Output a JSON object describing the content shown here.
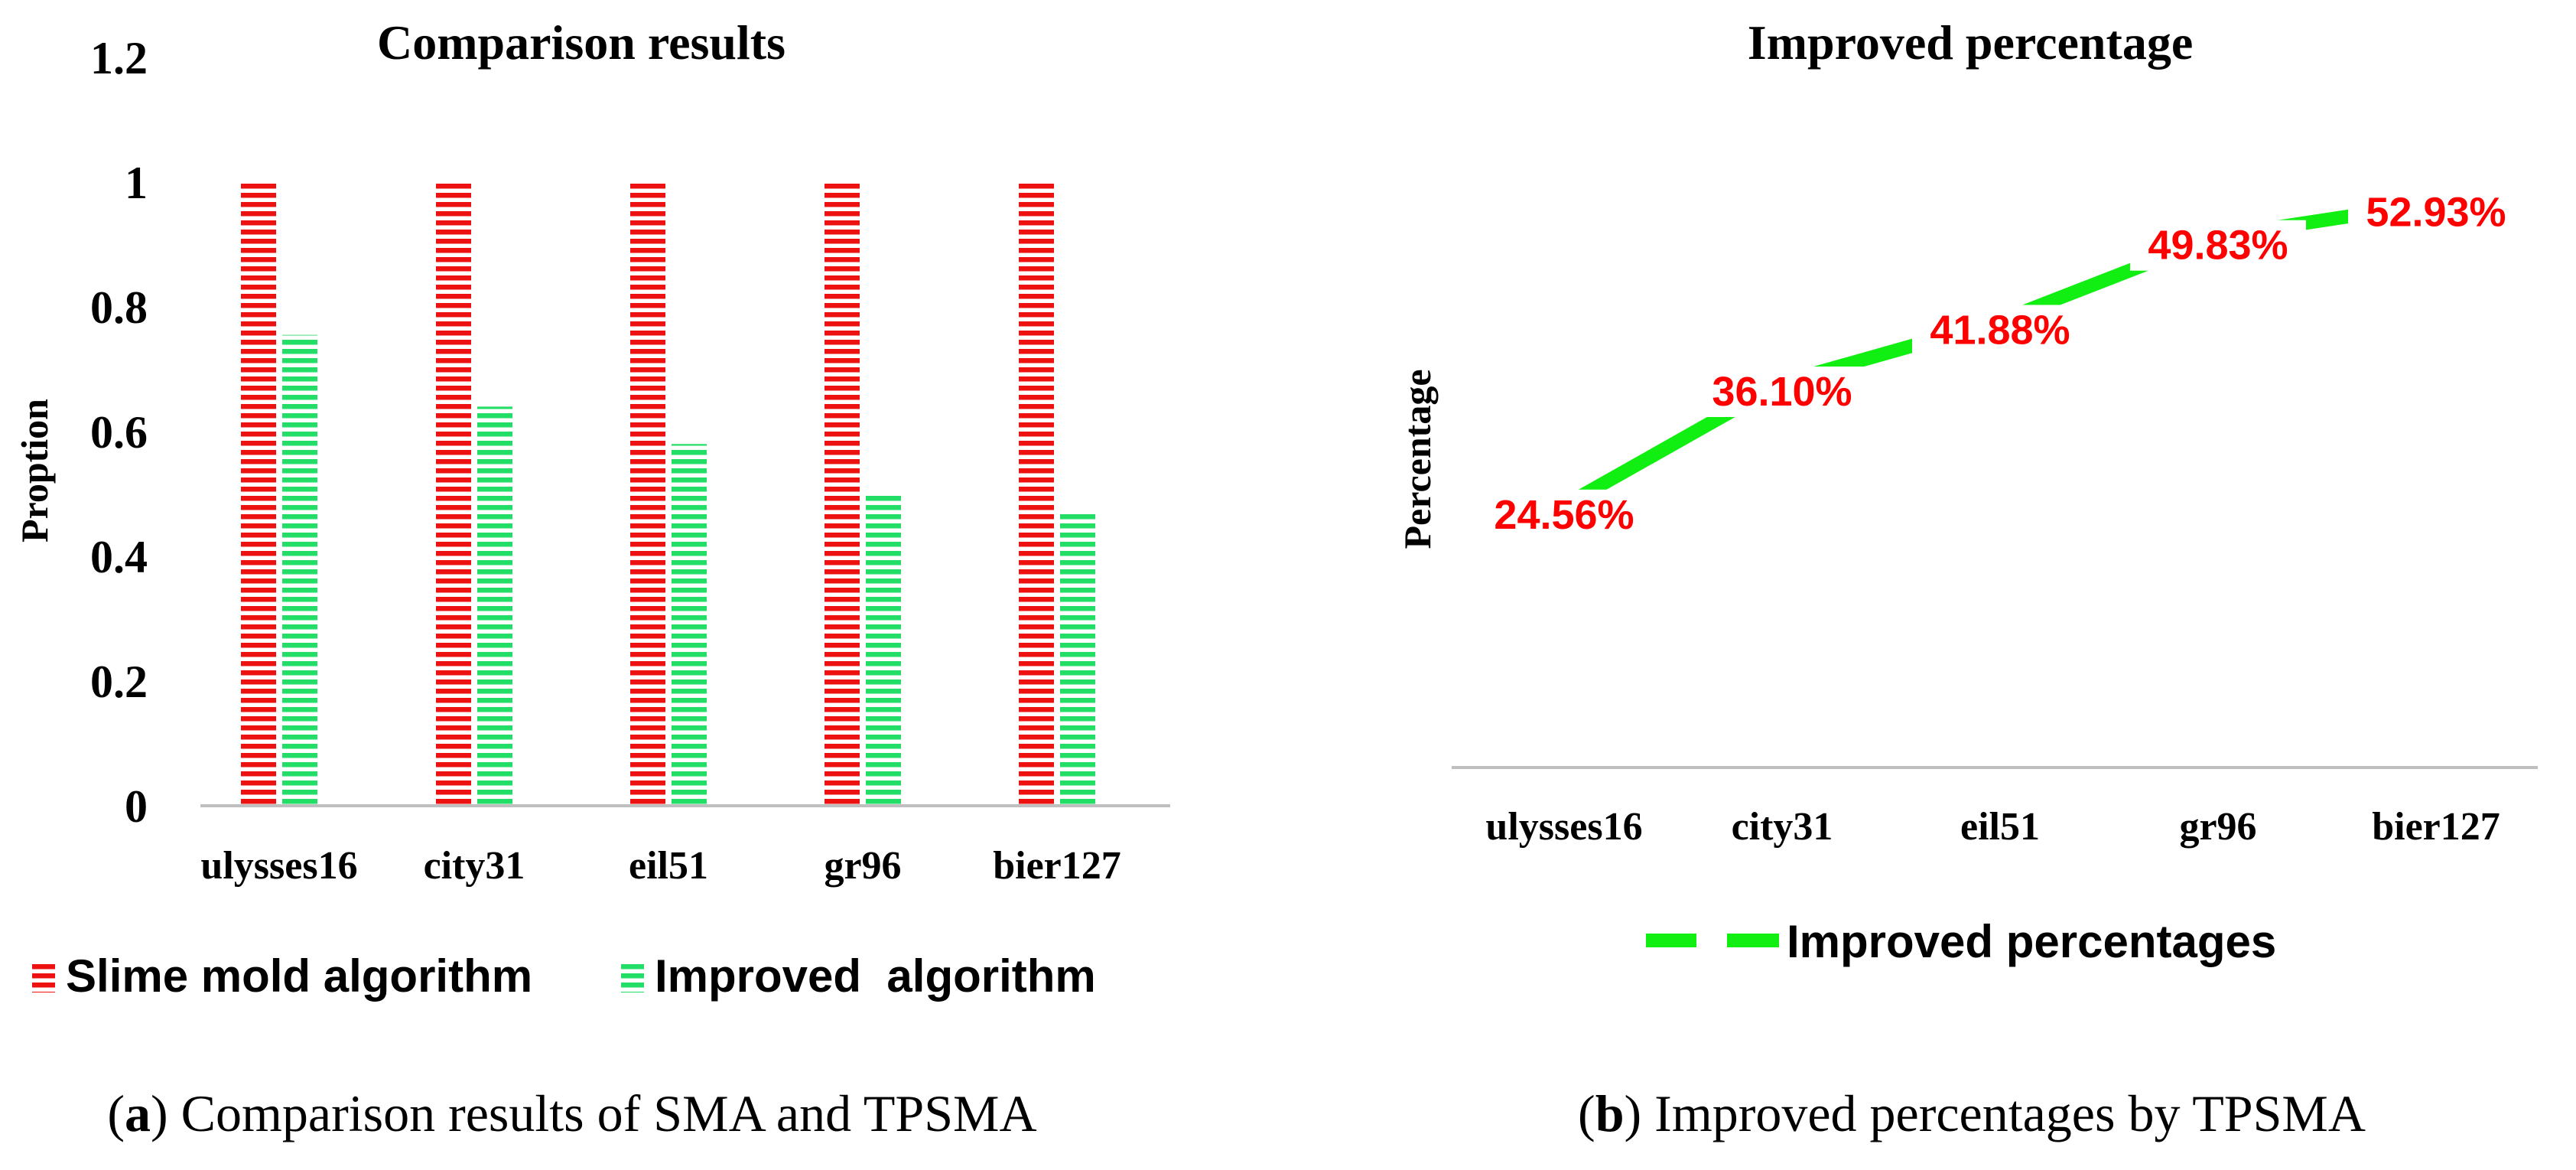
{
  "colors": {
    "red": "#ee1111",
    "green": "#22dd66",
    "line_green": "#11ee11",
    "label_red": "#ff0000",
    "axis": "#bfbfbf"
  },
  "chart_data": [
    {
      "type": "bar",
      "title": "Comparison results",
      "ylabel": "Proption",
      "xlabel": "",
      "ylim": [
        0,
        1.2
      ],
      "yticks": [
        "0",
        "0.2",
        "0.4",
        "0.6",
        "0.8",
        "1",
        "1.2"
      ],
      "categories": [
        "ulysses16",
        "city31",
        "eil51",
        "gr96",
        "bier127"
      ],
      "series": [
        {
          "name": "Slime mold algorithm",
          "values": [
            1,
            1,
            1,
            1,
            1
          ]
        },
        {
          "name": "Improved  algorithm",
          "values": [
            0.755,
            0.64,
            0.58,
            0.5,
            0.47
          ]
        }
      ],
      "legend_position": "bottom",
      "caption_label": "a",
      "caption_text": "Comparison results of SMA and TPSMA"
    },
    {
      "type": "line",
      "title": "Improved percentage",
      "ylabel": "Percentage",
      "xlabel": "",
      "ylim": [
        0,
        60
      ],
      "categories": [
        "ulysses16",
        "city31",
        "eil51",
        "gr96",
        "bier127"
      ],
      "series": [
        {
          "name": "Improved percentages",
          "values": [
            24.56,
            36.1,
            41.88,
            49.83,
            52.93
          ],
          "labels": [
            "24.56%",
            "36.10%",
            "41.88%",
            "49.83%",
            "52.93%"
          ]
        }
      ],
      "legend_position": "bottom",
      "caption_label": "b",
      "caption_text": "Improved percentages by TPSMA"
    }
  ]
}
